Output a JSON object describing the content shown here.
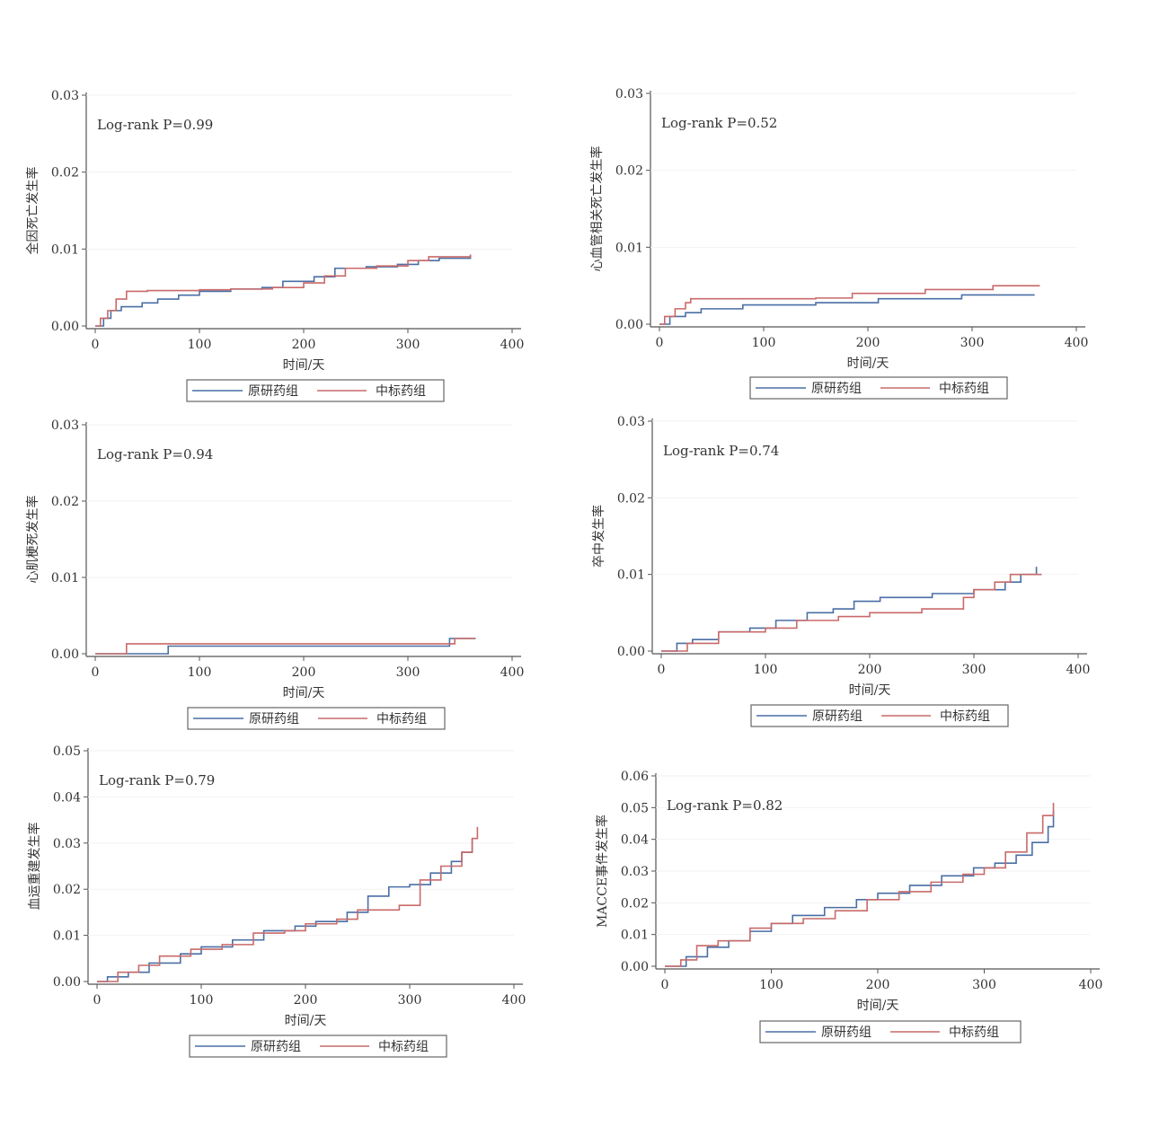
{
  "colors": {
    "series_a": "#4a6fa5",
    "series_b": "#c96a6a",
    "axis": "#555555"
  },
  "legend_labels": [
    "原研药组",
    "中标药组"
  ],
  "chart_data": [
    {
      "type": "line",
      "step": true,
      "annotation": "Log-rank P=0.99",
      "xlabel": "时间/天",
      "ylabel": "全因死亡发生率",
      "xlim": [
        0,
        400
      ],
      "ylim": [
        0,
        0.03
      ],
      "xticks": [
        "0",
        "100",
        "200",
        "300",
        "400"
      ],
      "yticks": [
        "0.00",
        "0.01",
        "0.02",
        "0.03"
      ],
      "legend": true,
      "series": [
        {
          "name": "原研药组",
          "x": [
            0,
            8,
            15,
            25,
            45,
            60,
            80,
            100,
            130,
            160,
            180,
            210,
            230,
            260,
            290,
            310,
            330,
            360
          ],
          "y": [
            0,
            0.001,
            0.002,
            0.0025,
            0.003,
            0.0035,
            0.004,
            0.0045,
            0.0048,
            0.005,
            0.0058,
            0.0064,
            0.0075,
            0.0077,
            0.008,
            0.0085,
            0.0088,
            0.0092
          ]
        },
        {
          "name": "中标药组",
          "x": [
            0,
            5,
            12,
            20,
            30,
            50,
            100,
            130,
            170,
            200,
            220,
            240,
            270,
            300,
            320,
            360
          ],
          "y": [
            0,
            0.001,
            0.002,
            0.0035,
            0.0045,
            0.0046,
            0.0047,
            0.0048,
            0.005,
            0.0056,
            0.0065,
            0.0075,
            0.0078,
            0.0085,
            0.009,
            0.0093
          ]
        }
      ]
    },
    {
      "type": "line",
      "step": true,
      "annotation": "Log-rank P=0.52",
      "xlabel": "时间/天",
      "ylabel": "心血管相关死亡发生率",
      "xlim": [
        0,
        400
      ],
      "ylim": [
        0,
        0.03
      ],
      "xticks": [
        "0",
        "100",
        "200",
        "300",
        "400"
      ],
      "yticks": [
        "0.00",
        "0.01",
        "0.02",
        "0.03"
      ],
      "legend": true,
      "series": [
        {
          "name": "原研药组",
          "x": [
            0,
            10,
            25,
            40,
            80,
            150,
            210,
            290,
            360
          ],
          "y": [
            0,
            0.001,
            0.0015,
            0.002,
            0.0025,
            0.0028,
            0.0033,
            0.0038,
            0.0038
          ]
        },
        {
          "name": "中标药组",
          "x": [
            0,
            5,
            15,
            25,
            30,
            150,
            185,
            255,
            320,
            365
          ],
          "y": [
            0,
            0.001,
            0.002,
            0.0028,
            0.0033,
            0.0034,
            0.004,
            0.0045,
            0.005,
            0.005
          ]
        }
      ]
    },
    {
      "type": "line",
      "step": true,
      "annotation": "Log-rank P=0.94",
      "xlabel": "时间/天",
      "ylabel": "心肌梗死发生率",
      "xlim": [
        0,
        400
      ],
      "ylim": [
        0,
        0.03
      ],
      "xticks": [
        "0",
        "100",
        "200",
        "300",
        "400"
      ],
      "yticks": [
        "0.00",
        "0.01",
        "0.02",
        "0.03"
      ],
      "legend": true,
      "series": [
        {
          "name": "原研药组",
          "x": [
            0,
            70,
            340,
            365
          ],
          "y": [
            0,
            0.001,
            0.002,
            0.002
          ]
        },
        {
          "name": "中标药组",
          "x": [
            0,
            30,
            345,
            365
          ],
          "y": [
            0,
            0.0013,
            0.002,
            0.002
          ]
        }
      ]
    },
    {
      "type": "line",
      "step": true,
      "annotation": "Log-rank P=0.74",
      "xlabel": "时间/天",
      "ylabel": "卒中发生率",
      "xlim": [
        0,
        400
      ],
      "ylim": [
        0,
        0.03
      ],
      "xticks": [
        "0",
        "100",
        "200",
        "300",
        "400"
      ],
      "yticks": [
        "0.00",
        "0.01",
        "0.02",
        "0.03"
      ],
      "legend": true,
      "series": [
        {
          "name": "原研药组",
          "x": [
            0,
            15,
            30,
            55,
            85,
            110,
            140,
            165,
            185,
            210,
            260,
            300,
            330,
            345,
            360
          ],
          "y": [
            0,
            0.001,
            0.0015,
            0.0025,
            0.003,
            0.004,
            0.005,
            0.0055,
            0.0065,
            0.007,
            0.0075,
            0.008,
            0.009,
            0.01,
            0.011
          ]
        },
        {
          "name": "中标药组",
          "x": [
            0,
            25,
            55,
            100,
            130,
            170,
            200,
            250,
            290,
            300,
            320,
            335,
            365
          ],
          "y": [
            0,
            0.001,
            0.0025,
            0.003,
            0.004,
            0.0045,
            0.005,
            0.0055,
            0.007,
            0.008,
            0.009,
            0.01,
            0.01
          ]
        }
      ]
    },
    {
      "type": "line",
      "step": true,
      "annotation": "Log-rank P=0.79",
      "xlabel": "时间/天",
      "ylabel": "血运重建发生率",
      "xlim": [
        0,
        400
      ],
      "ylim": [
        0,
        0.05
      ],
      "xticks": [
        "0",
        "100",
        "200",
        "300",
        "400"
      ],
      "yticks": [
        "0.00",
        "0.01",
        "0.02",
        "0.03",
        "0.04",
        "0.05"
      ],
      "legend": true,
      "series": [
        {
          "name": "原研药组",
          "x": [
            0,
            10,
            30,
            50,
            80,
            100,
            130,
            160,
            190,
            210,
            240,
            260,
            280,
            300,
            320,
            340,
            350,
            360
          ],
          "y": [
            0,
            0.001,
            0.002,
            0.004,
            0.006,
            0.0075,
            0.009,
            0.011,
            0.012,
            0.013,
            0.015,
            0.0185,
            0.0205,
            0.021,
            0.0235,
            0.026,
            0.028,
            0.031
          ]
        },
        {
          "name": "中标药组",
          "x": [
            0,
            20,
            40,
            60,
            90,
            120,
            150,
            180,
            200,
            230,
            250,
            290,
            310,
            330,
            350,
            360,
            365
          ],
          "y": [
            0,
            0.002,
            0.0035,
            0.0055,
            0.007,
            0.008,
            0.0105,
            0.011,
            0.0125,
            0.0135,
            0.0155,
            0.0165,
            0.022,
            0.025,
            0.028,
            0.031,
            0.0335
          ]
        }
      ]
    },
    {
      "type": "line",
      "step": true,
      "annotation": "Log-rank P=0.82",
      "xlabel": "时间/天",
      "ylabel": "MACCE事件发生率",
      "xlim": [
        0,
        400
      ],
      "ylim": [
        0,
        0.06
      ],
      "xticks": [
        "0",
        "100",
        "200",
        "300",
        "400"
      ],
      "yticks": [
        "0.00",
        "0.01",
        "0.02",
        "0.03",
        "0.04",
        "0.05",
        "0.06"
      ],
      "legend": true,
      "series": [
        {
          "name": "原研药组",
          "x": [
            0,
            20,
            40,
            60,
            80,
            100,
            120,
            150,
            180,
            200,
            230,
            260,
            290,
            310,
            330,
            345,
            360,
            365
          ],
          "y": [
            0,
            0.003,
            0.006,
            0.008,
            0.011,
            0.0135,
            0.016,
            0.0185,
            0.021,
            0.023,
            0.0255,
            0.0285,
            0.031,
            0.0325,
            0.035,
            0.039,
            0.044,
            0.049
          ]
        },
        {
          "name": "中标药组",
          "x": [
            0,
            15,
            30,
            50,
            80,
            100,
            130,
            160,
            190,
            220,
            250,
            280,
            300,
            320,
            340,
            355,
            365
          ],
          "y": [
            0,
            0.002,
            0.0065,
            0.008,
            0.012,
            0.0135,
            0.015,
            0.0175,
            0.021,
            0.0235,
            0.0265,
            0.029,
            0.031,
            0.036,
            0.042,
            0.0475,
            0.0515
          ]
        }
      ]
    }
  ]
}
